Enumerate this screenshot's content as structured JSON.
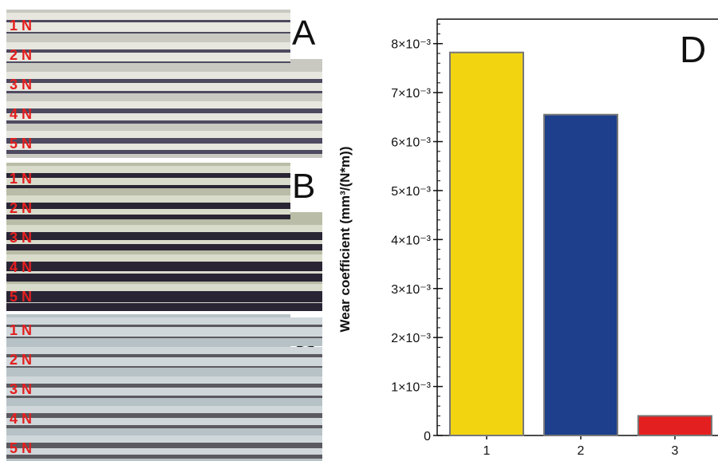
{
  "micrographs": [
    {
      "letter": "A",
      "tracks": [
        "1 N",
        "2 N",
        "3 N",
        "4 N",
        "5 N"
      ]
    },
    {
      "letter": "B",
      "tracks": [
        "1 N",
        "2 N",
        "3 N",
        "4 N",
        "5 N"
      ]
    },
    {
      "letter": "C",
      "tracks": [
        "1 N",
        "2 N",
        "3 N",
        "4 N",
        "5 N"
      ]
    }
  ],
  "chart_data": {
    "type": "bar",
    "panel_letter": "D",
    "categories": [
      "1",
      "2",
      "3"
    ],
    "values": [
      0.00782,
      0.00655,
      0.0004
    ],
    "colors": [
      "#f2d411",
      "#1d3f8c",
      "#e41f1f"
    ],
    "ylabel": "Wear coefficient (mm³/(N*m))",
    "ylim": [
      0,
      0.0085
    ],
    "yticks": [
      {
        "value": 0,
        "label": "0"
      },
      {
        "value": 0.001,
        "label": "1×10⁻³"
      },
      {
        "value": 0.002,
        "label": "2×10⁻³"
      },
      {
        "value": 0.003,
        "label": "3×10⁻³"
      },
      {
        "value": 0.004,
        "label": "4×10⁻³"
      },
      {
        "value": 0.005,
        "label": "5×10⁻³"
      },
      {
        "value": 0.006,
        "label": "6×10⁻³"
      },
      {
        "value": 0.007,
        "label": "7×10⁻³"
      },
      {
        "value": 0.008,
        "label": "8×10⁻³"
      }
    ],
    "grid": false,
    "legend": "none"
  }
}
